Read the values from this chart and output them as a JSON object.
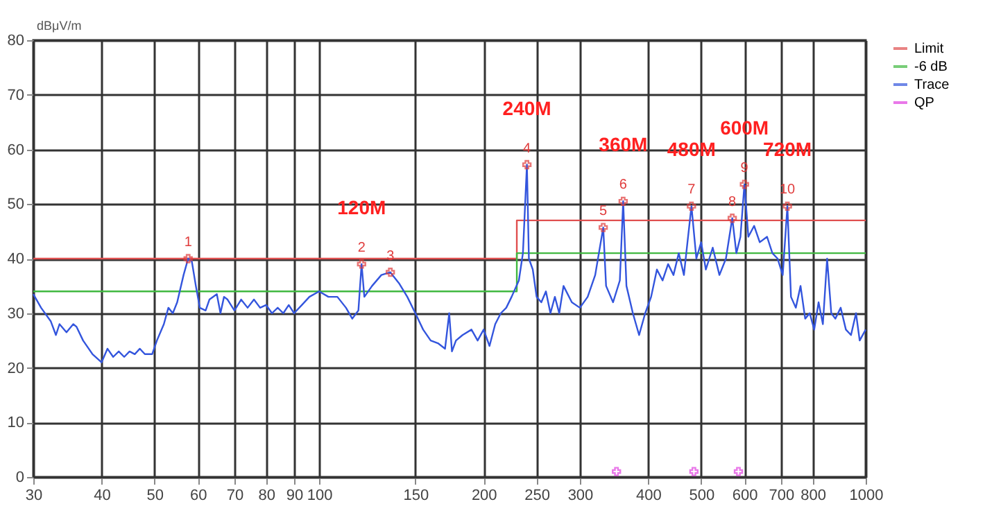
{
  "chart_data": {
    "type": "line",
    "ylabel": "dBμV/m",
    "log": "x",
    "grid": true,
    "legend": "right",
    "marker": "none",
    "line_style": "solid",
    "xlim": [
      30,
      1000
    ],
    "xticks": [
      30,
      40,
      50,
      60,
      70,
      80,
      90,
      100,
      150,
      200,
      250,
      300,
      400,
      500,
      600,
      700,
      800,
      {
        "value": 1000,
        "label": "1000"
      }
    ],
    "ylim": [
      0,
      80
    ],
    "yticks": [
      0,
      10,
      20,
      30,
      40,
      50,
      60,
      70,
      80
    ],
    "series": [
      {
        "name": "Limit",
        "type": "step",
        "color": "#e05050",
        "x": [
          30,
          230,
          1000
        ],
        "values": [
          40,
          47,
          47
        ]
      },
      {
        "name": "-6 dB",
        "type": "step",
        "color": "#40b840",
        "x": [
          30,
          230,
          1000
        ],
        "values": [
          34,
          41,
          41
        ]
      },
      {
        "name": "Trace",
        "color": "#3355dd",
        "x": [
          30,
          31,
          32.3,
          33,
          33.5,
          34.5,
          35.5,
          36,
          37,
          38.5,
          40,
          41,
          42,
          43,
          44,
          45,
          46,
          47,
          48,
          49.5,
          50.5,
          52,
          53,
          54,
          55,
          56.5,
          57.6,
          58.5,
          59.5,
          60.5,
          62,
          63,
          65,
          66,
          67,
          68,
          70,
          72,
          74,
          76,
          78,
          80,
          82,
          84,
          86,
          88,
          90,
          93,
          96,
          100,
          104,
          108,
          112,
          115,
          118,
          119.6,
          121,
          125,
          130,
          135,
          140,
          145,
          150,
          155,
          160,
          165,
          170,
          173,
          175,
          178,
          183,
          190,
          195,
          200,
          205,
          210,
          215,
          220,
          225,
          232,
          236,
          240,
          242,
          246,
          250,
          255,
          260,
          265,
          270,
          275,
          280,
          290,
          300,
          310,
          320,
          331,
          335,
          345,
          355,
          360,
          365,
          375,
          385,
          395,
          405,
          415,
          425,
          435,
          445,
          455,
          465,
          472,
          480,
          490,
          500,
          510,
          525,
          540,
          555,
          570,
          580,
          590,
          600,
          610,
          625,
          640,
          660,
          675,
          690,
          705,
          719,
          730,
          745,
          760,
          775,
          790,
          805,
          820,
          835,
          850,
          865,
          880,
          900,
          920,
          940,
          960,
          975,
          1000
        ],
        "values": [
          33.5,
          31,
          28.5,
          26,
          28,
          26.5,
          28,
          27.5,
          25,
          22.5,
          21,
          23.5,
          22,
          23,
          22,
          23,
          22.5,
          23.5,
          22.5,
          22.5,
          25,
          28,
          31,
          30,
          32,
          37,
          40,
          39.5,
          35,
          31,
          30.5,
          32.5,
          33.5,
          30,
          33,
          32.5,
          30.5,
          32.5,
          31,
          32.5,
          31,
          31.5,
          30,
          31,
          30,
          31.5,
          30,
          31.5,
          33,
          34,
          33,
          33,
          31,
          29,
          30.5,
          39,
          33,
          35,
          37,
          37.5,
          35.5,
          33,
          30,
          27,
          25,
          24.5,
          23.5,
          30,
          23,
          25,
          26,
          27,
          25,
          27,
          24,
          28,
          30,
          31,
          33,
          36,
          41,
          57.2,
          40,
          38,
          33,
          32,
          34,
          30,
          33,
          30,
          35,
          32,
          31,
          33,
          37,
          45.7,
          35,
          32,
          36,
          50.5,
          35,
          30,
          26,
          30,
          33,
          38,
          36,
          39,
          37,
          41,
          37,
          43,
          49.6,
          40,
          43,
          38,
          42,
          37,
          40,
          47.4,
          41,
          44,
          53.6,
          44,
          46,
          43,
          44,
          41,
          40,
          37,
          49.6,
          33,
          31,
          35,
          29,
          30,
          27,
          32,
          28,
          40,
          30,
          29,
          31,
          27,
          26,
          30,
          25,
          27
        ]
      },
      {
        "type": "scatter",
        "marker": "cross",
        "color": "#e03c3c",
        "x": [
          57.6,
          119.6,
          135,
          240,
          331,
          360,
          480,
          570,
          600,
          719
        ],
        "values": [
          40,
          39,
          37.5,
          57.2,
          45.7,
          50.5,
          49.6,
          47.4,
          53.6,
          49.6
        ]
      },
      {
        "name": "QP",
        "type": "scatter",
        "marker": "cross",
        "color": "#e040e0",
        "x": [
          350,
          485,
          585
        ],
        "values": [
          1,
          1,
          1
        ]
      }
    ],
    "annotations": [
      {
        "text": "1",
        "x": 57.6,
        "y": 40
      },
      {
        "text": "2",
        "x": 119.6,
        "y": 39
      },
      {
        "text": "3",
        "x": 135,
        "y": 37.5
      },
      {
        "text": "4",
        "x": 240,
        "y": 57.2
      },
      {
        "text": "5",
        "x": 331,
        "y": 45.7
      },
      {
        "text": "6",
        "x": 360,
        "y": 50.5
      },
      {
        "text": "7",
        "x": 480,
        "y": 49.6
      },
      {
        "text": "8",
        "x": 570,
        "y": 47.4
      },
      {
        "text": "9",
        "x": 600,
        "y": 53.6
      },
      {
        "text": "10",
        "x": 719,
        "y": 49.6
      },
      {
        "text": "120M",
        "x": 119.6,
        "y": 39
      },
      {
        "text": "240M",
        "x": 240,
        "y": 57.2
      },
      {
        "text": "360M",
        "x": 360,
        "y": 50.5
      },
      {
        "text": "480M",
        "x": 480,
        "y": 49.6
      },
      {
        "text": "600M",
        "x": 600,
        "y": 53.6
      },
      {
        "text": "720M",
        "x": 719,
        "y": 49.6
      }
    ]
  }
}
